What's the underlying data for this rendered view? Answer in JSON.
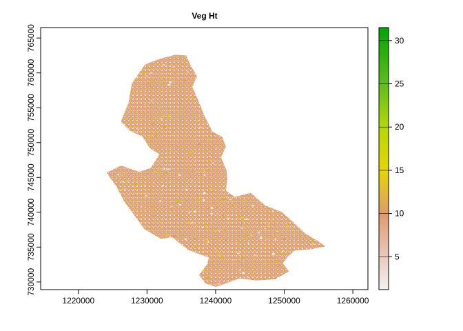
{
  "chart_data": {
    "type": "heatmap",
    "title": "Veg Ht",
    "x_axis": {
      "range": [
        1214500,
        1262200
      ],
      "ticks": [
        1220000,
        1230000,
        1240000,
        1250000,
        1260000
      ],
      "tick_labels": [
        "1220000",
        "1230000",
        "1240000",
        "1250000",
        "1260000"
      ]
    },
    "y_axis": {
      "range": [
        728900,
        766500
      ],
      "ticks": [
        730000,
        735000,
        740000,
        745000,
        750000,
        755000,
        760000,
        765000
      ],
      "tick_labels": [
        "730000",
        "735000",
        "740000",
        "745000",
        "750000",
        "755000",
        "760000",
        "765000"
      ]
    },
    "legend": {
      "type": "colorbar",
      "placement": "right",
      "range": [
        1.2,
        31.5
      ],
      "ticks": [
        5,
        10,
        15,
        20,
        25,
        30
      ],
      "tick_labels": [
        "5",
        "10",
        "15",
        "20",
        "25",
        "30"
      ],
      "color_stops": [
        {
          "value": 1.2,
          "color": "#f2f2f2"
        },
        {
          "value": 5,
          "color": "#ebc9c0"
        },
        {
          "value": 10,
          "color": "#e09a6c"
        },
        {
          "value": 15,
          "color": "#e6d600"
        },
        {
          "value": 20,
          "color": "#b5d900"
        },
        {
          "value": 25,
          "color": "#5fbd1e"
        },
        {
          "value": 31.5,
          "color": "#00a600"
        }
      ]
    },
    "grid": false,
    "region_outline": [
      [
        1226200,
        753000
      ],
      [
        1227300,
        755700
      ],
      [
        1227800,
        758500
      ],
      [
        1229700,
        761200
      ],
      [
        1231800,
        762000
      ],
      [
        1234100,
        762600
      ],
      [
        1235700,
        762500
      ],
      [
        1236300,
        761200
      ],
      [
        1237300,
        759500
      ],
      [
        1236600,
        758000
      ],
      [
        1237500,
        756000
      ],
      [
        1238300,
        754000
      ],
      [
        1239500,
        751600
      ],
      [
        1241000,
        750800
      ],
      [
        1241500,
        749400
      ],
      [
        1240800,
        747900
      ],
      [
        1241600,
        746000
      ],
      [
        1241700,
        744800
      ],
      [
        1241500,
        743100
      ],
      [
        1242800,
        742200
      ],
      [
        1245100,
        742800
      ],
      [
        1247200,
        741000
      ],
      [
        1249700,
        740000
      ],
      [
        1251300,
        738600
      ],
      [
        1253000,
        737000
      ],
      [
        1255000,
        735800
      ],
      [
        1256000,
        735100
      ],
      [
        1254000,
        734700
      ],
      [
        1251500,
        734500
      ],
      [
        1250500,
        733600
      ],
      [
        1249800,
        732700
      ],
      [
        1250700,
        731500
      ],
      [
        1248700,
        730400
      ],
      [
        1246000,
        730200
      ],
      [
        1243500,
        730500
      ],
      [
        1241000,
        729600
      ],
      [
        1240000,
        729300
      ],
      [
        1238500,
        729800
      ],
      [
        1237600,
        731000
      ],
      [
        1238800,
        732600
      ],
      [
        1239000,
        733500
      ],
      [
        1236000,
        734600
      ],
      [
        1233700,
        736400
      ],
      [
        1232000,
        736200
      ],
      [
        1229600,
        737600
      ],
      [
        1227900,
        739900
      ],
      [
        1226700,
        741500
      ],
      [
        1225600,
        743600
      ],
      [
        1224100,
        745700
      ],
      [
        1226200,
        746700
      ],
      [
        1228900,
        745800
      ],
      [
        1230600,
        746400
      ],
      [
        1231800,
        748300
      ],
      [
        1230400,
        749200
      ],
      [
        1229300,
        750900
      ],
      [
        1227500,
        751700
      ],
      [
        1226200,
        753000
      ]
    ]
  }
}
